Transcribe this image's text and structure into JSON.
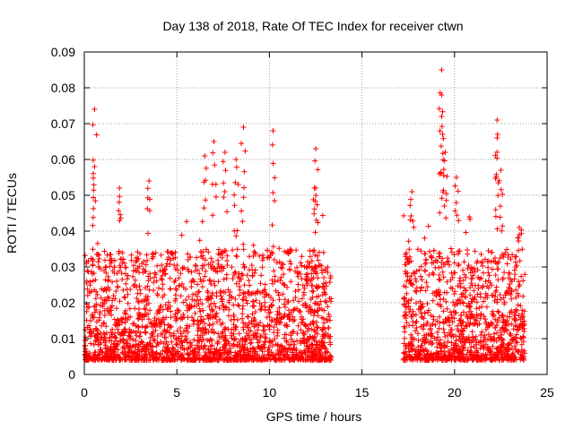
{
  "chart_data": {
    "type": "scatter",
    "title": "Day 138 of 2018, Rate Of TEC Index for receiver ctwn",
    "xlabel": "GPS time / hours",
    "ylabel": "ROTI / TECUs",
    "xlim": [
      0,
      25
    ],
    "ylim": [
      0,
      0.09
    ],
    "x_ticks": [
      0,
      5,
      10,
      15,
      20,
      25
    ],
    "x_tick_labels": [
      "0",
      "5",
      "10",
      "15",
      "20",
      "25"
    ],
    "y_ticks": [
      0,
      0.01,
      0.02,
      0.03,
      0.04,
      0.05,
      0.06,
      0.07,
      0.08,
      0.09
    ],
    "y_tick_labels": [
      "0",
      "0.01",
      "0.02",
      "0.03",
      "0.04",
      "0.05",
      "0.06",
      "0.07",
      "0.08",
      "0.09"
    ],
    "grid": true,
    "marker": "+",
    "colors": {
      "series": "#ff0000",
      "grid": "#a0a0a0",
      "axis": "#000000"
    },
    "series": [
      {
        "name": "ROTI",
        "segments": [
          [
            0,
            13.35
          ],
          [
            17.25,
            23.8
          ]
        ],
        "peaks": [
          {
            "x": 0.55,
            "y": 0.074
          },
          {
            "x": 0.55,
            "y": 0.058
          },
          {
            "x": 1.9,
            "y": 0.052
          },
          {
            "x": 3.5,
            "y": 0.054
          },
          {
            "x": 6.5,
            "y": 0.061
          },
          {
            "x": 7.0,
            "y": 0.065
          },
          {
            "x": 7.6,
            "y": 0.062
          },
          {
            "x": 8.2,
            "y": 0.06
          },
          {
            "x": 8.6,
            "y": 0.069
          },
          {
            "x": 10.2,
            "y": 0.068
          },
          {
            "x": 12.5,
            "y": 0.063
          },
          {
            "x": 12.5,
            "y": 0.052
          },
          {
            "x": 17.7,
            "y": 0.051
          },
          {
            "x": 19.3,
            "y": 0.085
          },
          {
            "x": 19.3,
            "y": 0.078
          },
          {
            "x": 19.3,
            "y": 0.072
          },
          {
            "x": 19.5,
            "y": 0.062
          },
          {
            "x": 20.1,
            "y": 0.055
          },
          {
            "x": 22.3,
            "y": 0.071
          },
          {
            "x": 22.3,
            "y": 0.066
          },
          {
            "x": 22.5,
            "y": 0.057
          },
          {
            "x": 23.5,
            "y": 0.041
          }
        ],
        "baseline": 0.012,
        "typical_max": 0.035
      }
    ]
  }
}
